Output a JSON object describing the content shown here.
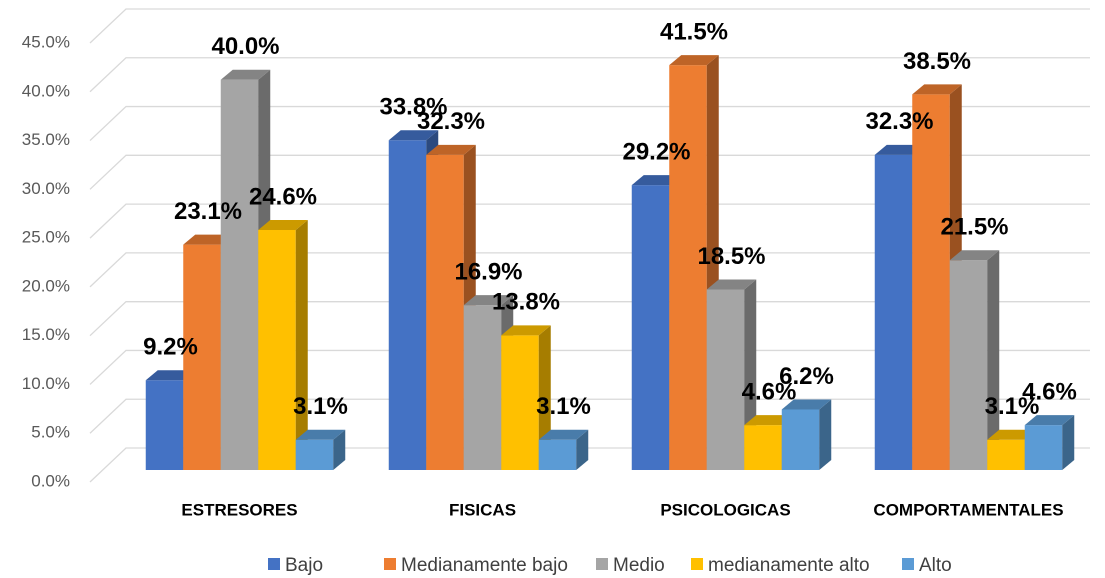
{
  "chart_data": {
    "type": "bar3d",
    "categories": [
      "ESTRESORES",
      "FISICAS",
      "PSICOLOGICAS",
      "COMPORTAMENTALES"
    ],
    "series": [
      {
        "name": "Bajo",
        "color": "#4472c4",
        "values": [
          9.2,
          33.8,
          29.2,
          32.3
        ],
        "value_labels": [
          "9.2%",
          "33.8%",
          "29.2%",
          "32.3%"
        ]
      },
      {
        "name": "Medianamente bajo",
        "color": "#ed7d31",
        "values": [
          23.1,
          32.3,
          41.5,
          38.5
        ],
        "value_labels": [
          "23.1%",
          "32.3%",
          "41.5%",
          "38.5%"
        ]
      },
      {
        "name": "Medio",
        "color": "#a5a5a5",
        "values": [
          40.0,
          16.9,
          18.5,
          21.5
        ],
        "value_labels": [
          "40.0%",
          "16.9%",
          "18.5%",
          "21.5%"
        ]
      },
      {
        "name": "medianamente alto",
        "color": "#ffc000",
        "values": [
          24.6,
          13.8,
          4.6,
          3.1
        ],
        "value_labels": [
          "24.6%",
          "13.8%",
          "4.6%",
          "3.1%"
        ]
      },
      {
        "name": "Alto",
        "color": "#5b9bd5",
        "values": [
          3.1,
          3.1,
          6.2,
          4.6
        ],
        "value_labels": [
          "3.1%",
          "3.1%",
          "6.2%",
          "4.6%"
        ]
      }
    ],
    "ylim": [
      0,
      45
    ],
    "yticks": [
      {
        "value": 0,
        "label": "0.0%"
      },
      {
        "value": 5,
        "label": "5.0%"
      },
      {
        "value": 10,
        "label": "10.0%"
      },
      {
        "value": 15,
        "label": "15.0%"
      },
      {
        "value": 20,
        "label": "20.0%"
      },
      {
        "value": 25,
        "label": "25.0%"
      },
      {
        "value": 30,
        "label": "30.0%"
      },
      {
        "value": 35,
        "label": "35.0%"
      },
      {
        "value": 40,
        "label": "40.0%"
      },
      {
        "value": 45,
        "label": "45.0%"
      }
    ],
    "grid": true,
    "legend": "bottom"
  }
}
